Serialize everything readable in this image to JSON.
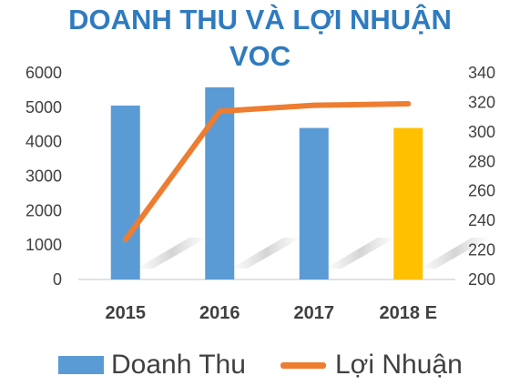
{
  "chart_data": {
    "type": "bar+line",
    "title": [
      "DOANH THU VÀ LỢI NHUẬN",
      "VOC"
    ],
    "categories": [
      "2015",
      "2016",
      "2017",
      "2018 E"
    ],
    "series": [
      {
        "name": "Doanh Thu",
        "type": "bar",
        "axis": "left",
        "values": [
          5050,
          5580,
          4400,
          4400
        ],
        "color": "#5b9bd5",
        "highlight_color": "#ffc000",
        "highlight_index": 3
      },
      {
        "name": "Lợi Nhuận",
        "type": "line",
        "axis": "right",
        "values": [
          227,
          314,
          318,
          319
        ],
        "color": "#ed7d31"
      }
    ],
    "y_left": {
      "min": 0,
      "max": 6000,
      "ticks": [
        "0",
        "1000",
        "2000",
        "3000",
        "4000",
        "5000",
        "6000"
      ]
    },
    "y_right": {
      "min": 200,
      "max": 340,
      "ticks": [
        "200",
        "220",
        "240",
        "260",
        "280",
        "300",
        "320",
        "340"
      ]
    },
    "grid": false,
    "legend": "bottom"
  }
}
